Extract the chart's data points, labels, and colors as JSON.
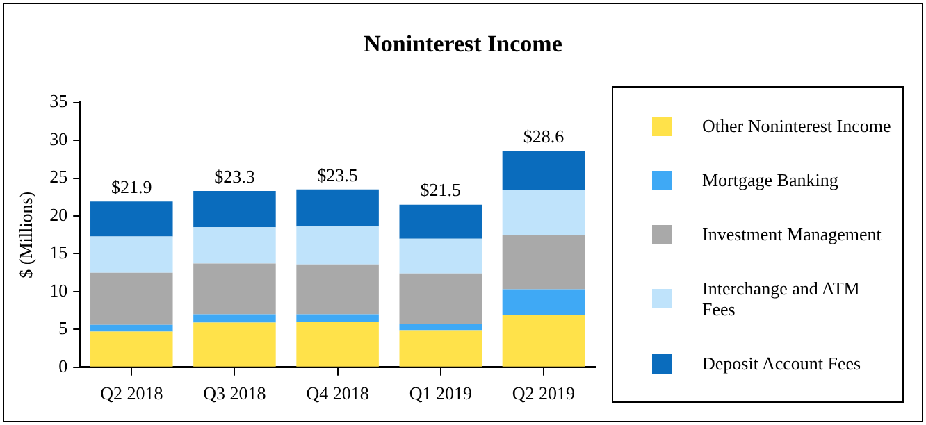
{
  "chart_data": {
    "type": "bar",
    "title": "Noninterest Income",
    "ylabel": "$ (Millions)",
    "categories": [
      "Q2 2018",
      "Q3 2018",
      "Q4 2018",
      "Q1 2019",
      "Q2 2019"
    ],
    "stacked": true,
    "series": [
      {
        "name": "Other Noninterest Income",
        "color": "#ffe24a",
        "values": [
          4.7,
          5.9,
          6.0,
          4.9,
          6.9
        ]
      },
      {
        "name": "Mortgage Banking",
        "color": "#3fa9f5",
        "values": [
          0.9,
          1.1,
          1.0,
          0.8,
          3.4
        ]
      },
      {
        "name": "Investment Management",
        "color": "#a9a9a9",
        "values": [
          6.9,
          6.7,
          6.6,
          6.7,
          7.2
        ]
      },
      {
        "name": "Interchange and ATM Fees",
        "color": "#bfe3fb",
        "values": [
          4.8,
          4.8,
          5.0,
          4.6,
          5.9
        ]
      },
      {
        "name": "Deposit Account Fees",
        "color": "#0a6cbd",
        "values": [
          4.6,
          4.8,
          4.9,
          4.5,
          5.2
        ]
      }
    ],
    "totals": [
      "$21.9",
      "$23.3",
      "$23.5",
      "$21.5",
      "$28.6"
    ],
    "ylim": [
      0,
      35
    ],
    "yticks": [
      0,
      5,
      10,
      15,
      20,
      25,
      30,
      35
    ],
    "grid": false,
    "legend": "right"
  }
}
